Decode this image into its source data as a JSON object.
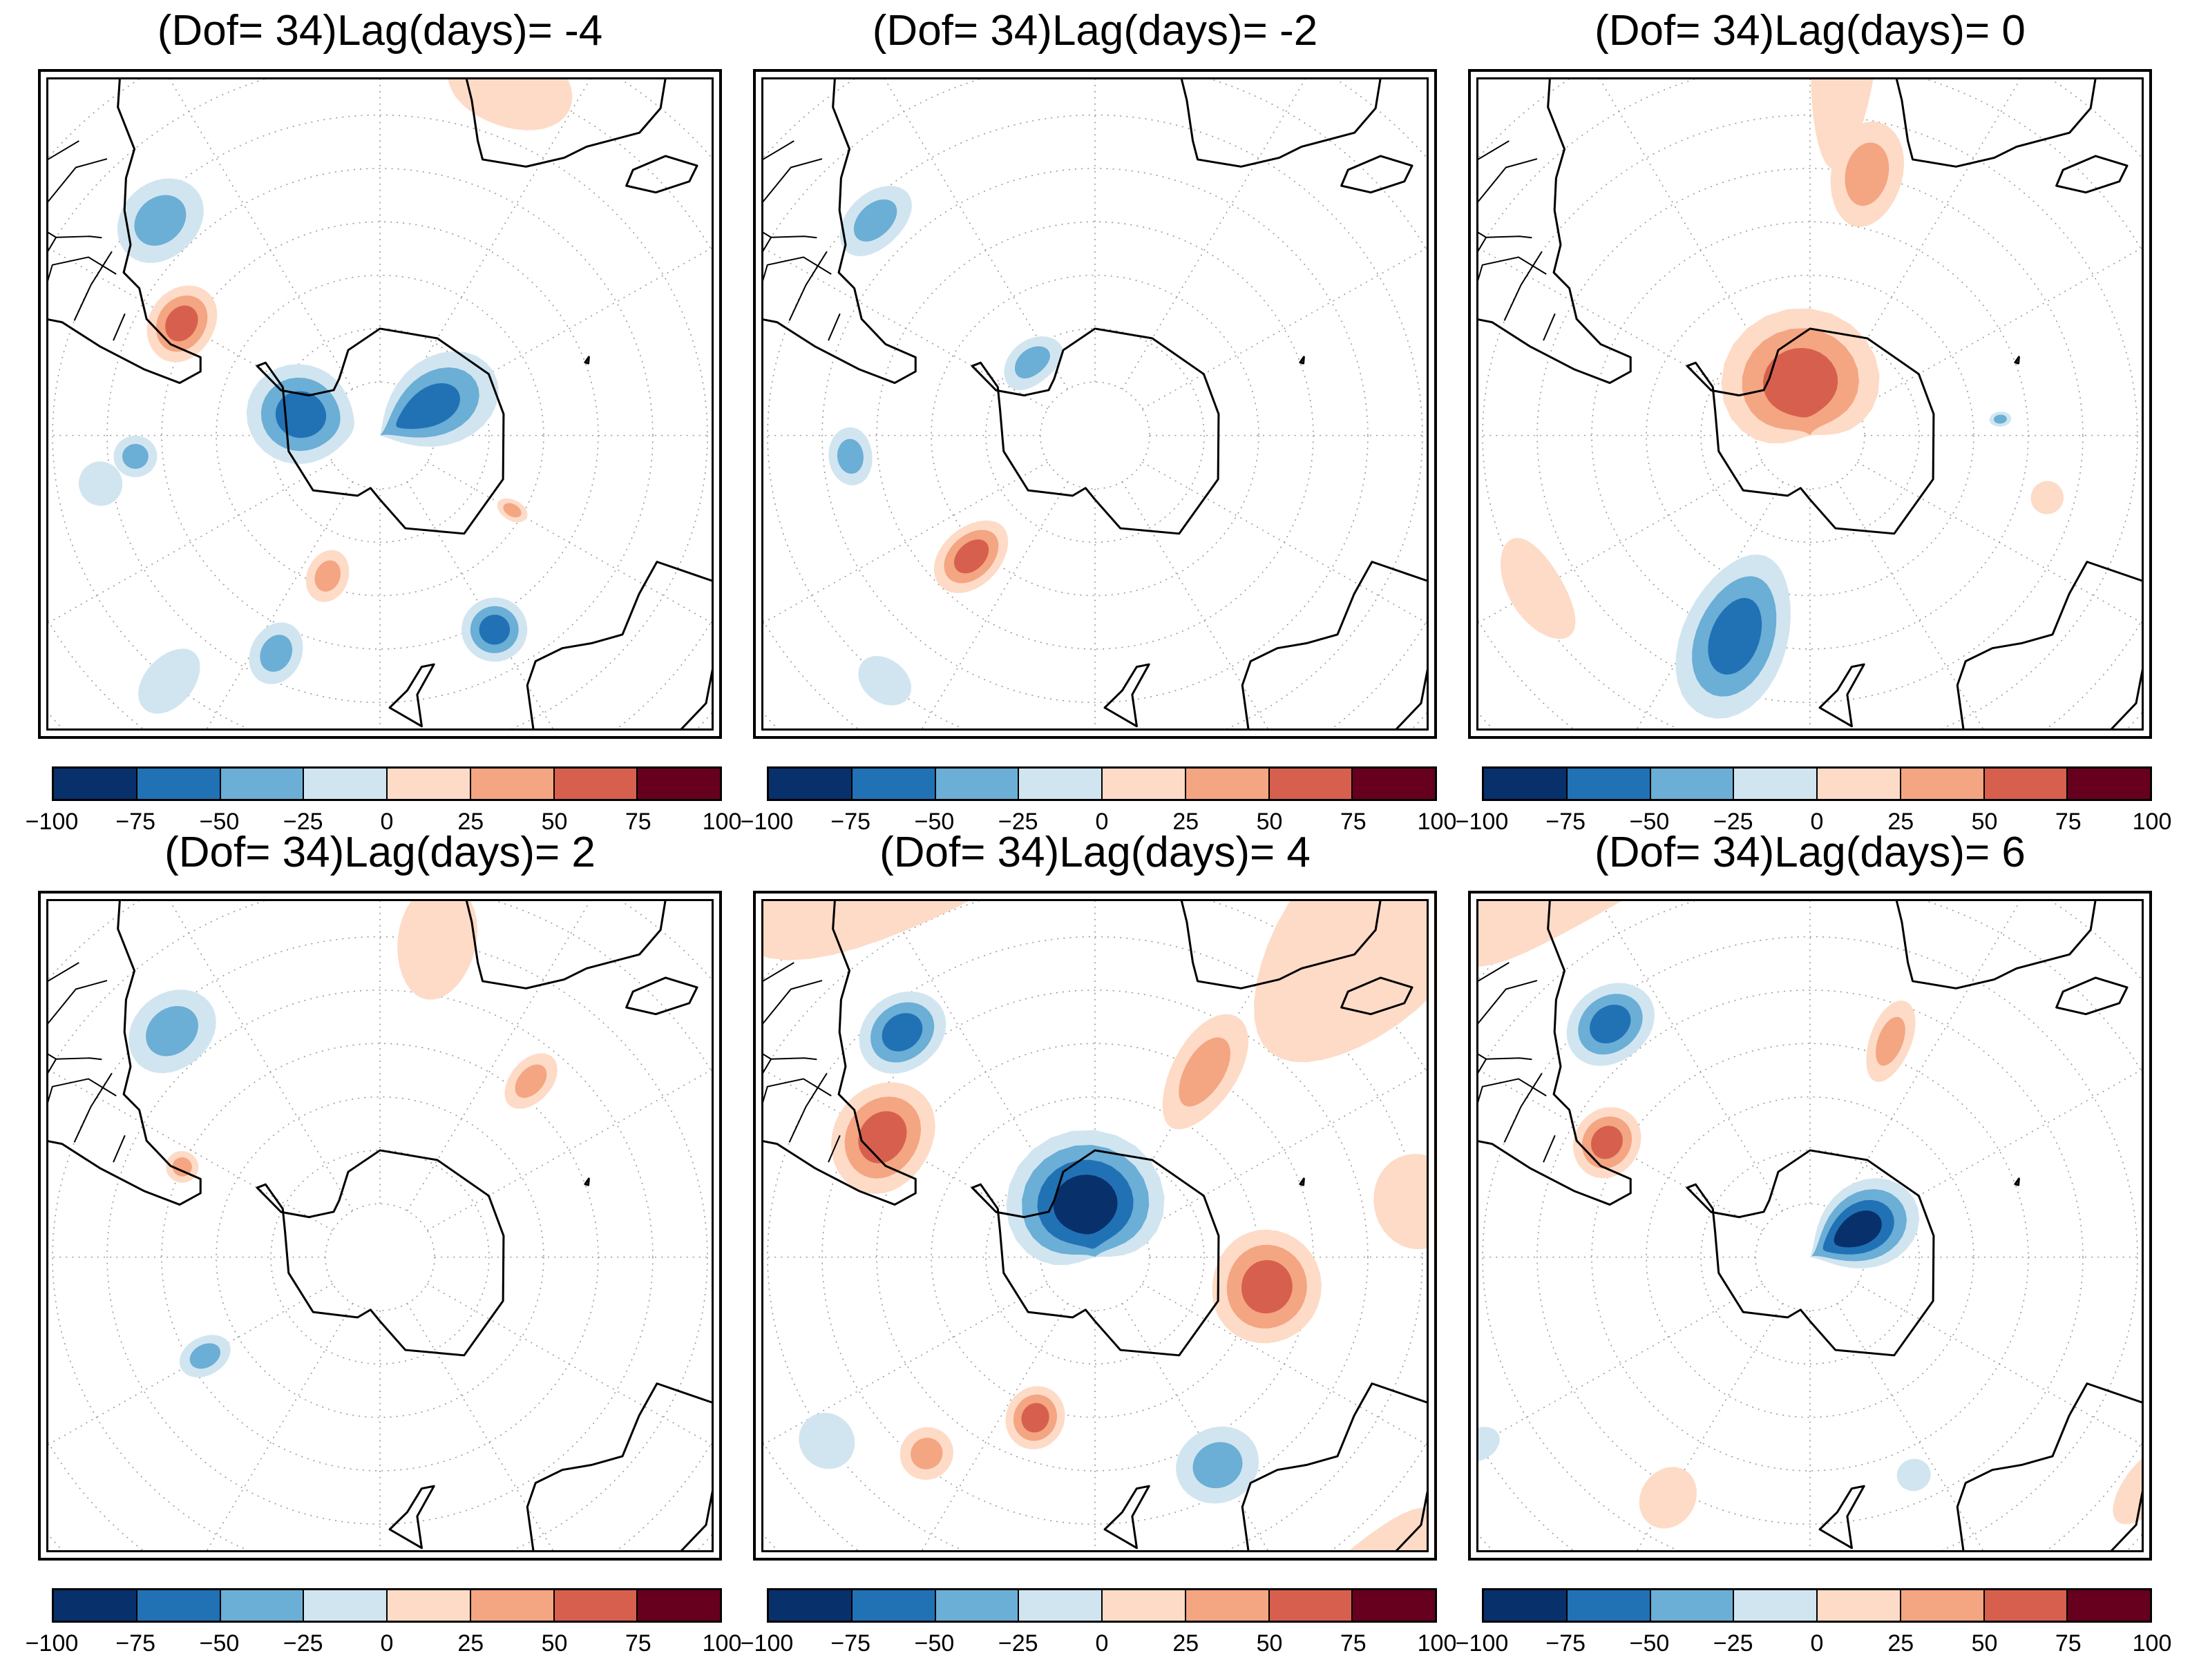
{
  "panels": [
    {
      "title": "(Dof= 34)Lag(days)= -4",
      "anomalies": [
        {
          "value": 25,
          "lon": 20,
          "lat": -20,
          "rx": 12,
          "ry": 8
        },
        {
          "value": -50,
          "lon": -45,
          "lat": -33,
          "rx": 10,
          "ry": 7
        },
        {
          "value": 75,
          "lon": -60,
          "lat": -48,
          "rx": 10,
          "ry": 6
        },
        {
          "value": -25,
          "lon": -100,
          "lat": -38,
          "rx": 5,
          "ry": 4
        },
        {
          "value": -50,
          "lon": -95,
          "lat": -45,
          "rx": 5,
          "ry": 4
        },
        {
          "value": -25,
          "lon": -140,
          "lat": -30,
          "rx": 5,
          "ry": 7
        },
        {
          "value": -75,
          "lon": -75,
          "lat": -75,
          "rx": 20,
          "ry": 10
        },
        {
          "value": -75,
          "lon": 60,
          "lat": -80,
          "rx": 20,
          "ry": 14
        },
        {
          "value": 50,
          "lon": -160,
          "lat": -62,
          "rx": 6,
          "ry": 5
        },
        {
          "value": -50,
          "lon": -155,
          "lat": -45,
          "rx": 6,
          "ry": 6
        },
        {
          "value": -75,
          "lon": 150,
          "lat": -48,
          "rx": 8,
          "ry": 6
        },
        {
          "value": 50,
          "lon": 120,
          "lat": -62,
          "rx": 3,
          "ry": 3
        }
      ]
    },
    {
      "title": "(Dof= 34)Lag(days)= -2",
      "anomalies": [
        {
          "value": -50,
          "lon": -45,
          "lat": -33,
          "rx": 9,
          "ry": 5
        },
        {
          "value": -50,
          "lon": -95,
          "lat": -45,
          "rx": 7,
          "ry": 4
        },
        {
          "value": -25,
          "lon": -140,
          "lat": -30,
          "rx": 6,
          "ry": 4
        },
        {
          "value": 75,
          "lon": -135,
          "lat": -58,
          "rx": 8,
          "ry": 8
        },
        {
          "value": -50,
          "lon": -40,
          "lat": -72,
          "rx": 12,
          "ry": 4
        }
      ]
    },
    {
      "title": "(Dof= 34)Lag(days)= 0",
      "anomalies": [
        {
          "value": 25,
          "lon": 5,
          "lat": -20,
          "rx": 6,
          "ry": 20
        },
        {
          "value": 50,
          "lon": 12,
          "lat": -40,
          "rx": 8,
          "ry": 10
        },
        {
          "value": 75,
          "lon": -10,
          "lat": -80,
          "rx": 40,
          "ry": 14
        },
        {
          "value": -75,
          "lon": -160,
          "lat": -50,
          "rx": 13,
          "ry": 16
        },
        {
          "value": 25,
          "lon": -120,
          "lat": -32,
          "rx": 12,
          "ry": 5
        },
        {
          "value": -50,
          "lon": 85,
          "lat": -55,
          "rx": 2,
          "ry": 2
        },
        {
          "value": 25,
          "lon": 105,
          "lat": -45,
          "rx": 4,
          "ry": 3
        }
      ]
    },
    {
      "title": "(Dof= 34)Lag(days)= 2",
      "anomalies": [
        {
          "value": -50,
          "lon": -42,
          "lat": -33,
          "rx": 10,
          "ry": 7
        },
        {
          "value": 25,
          "lon": 10,
          "lat": -30,
          "rx": 8,
          "ry": 11
        },
        {
          "value": 50,
          "lon": -65,
          "lat": -50,
          "rx": 4,
          "ry": 3
        },
        {
          "value": -50,
          "lon": -120,
          "lat": -53,
          "rx": 5,
          "ry": 5
        },
        {
          "value": 50,
          "lon": 40,
          "lat": -47,
          "rx": 5,
          "ry": 6
        }
      ]
    },
    {
      "title": "(Dof= 34)Lag(days)= 4",
      "anomalies": [
        {
          "value": 25,
          "lon": -25,
          "lat": -2,
          "rx": 30,
          "ry": 18
        },
        {
          "value": 25,
          "lon": 40,
          "lat": -15,
          "rx": 15,
          "ry": 25
        },
        {
          "value": -75,
          "lon": -40,
          "lat": -35,
          "rx": 10,
          "ry": 7
        },
        {
          "value": 75,
          "lon": -60,
          "lat": -45,
          "rx": 14,
          "ry": 9
        },
        {
          "value": 50,
          "lon": 30,
          "lat": -50,
          "rx": 8,
          "ry": 12
        },
        {
          "value": -100,
          "lon": -10,
          "lat": -80,
          "rx": 40,
          "ry": 14
        },
        {
          "value": 75,
          "lon": 100,
          "lat": -58,
          "rx": 16,
          "ry": 10
        },
        {
          "value": 75,
          "lon": -160,
          "lat": -58,
          "rx": 8,
          "ry": 6
        },
        {
          "value": 50,
          "lon": -140,
          "lat": -42,
          "rx": 6,
          "ry": 5
        },
        {
          "value": -50,
          "lon": 150,
          "lat": -45,
          "rx": 10,
          "ry": 7
        },
        {
          "value": 25,
          "lon": 140,
          "lat": -12,
          "rx": 16,
          "ry": 6
        },
        {
          "value": 25,
          "lon": 80,
          "lat": -30,
          "rx": 10,
          "ry": 8
        },
        {
          "value": -25,
          "lon": -125,
          "lat": -30,
          "rx": 6,
          "ry": 5
        }
      ]
    },
    {
      "title": "(Dof= 34)Lag(days)= 6",
      "anomalies": [
        {
          "value": 25,
          "lon": -30,
          "lat": -5,
          "rx": 25,
          "ry": 10
        },
        {
          "value": -75,
          "lon": -40,
          "lat": -33,
          "rx": 10,
          "ry": 7
        },
        {
          "value": 75,
          "lon": -60,
          "lat": -47,
          "rx": 9,
          "ry": 6
        },
        {
          "value": 50,
          "lon": 20,
          "lat": -47,
          "rx": 5,
          "ry": 8
        },
        {
          "value": -100,
          "lon": 60,
          "lat": -80,
          "rx": 20,
          "ry": 12
        },
        {
          "value": 25,
          "lon": -150,
          "lat": -38,
          "rx": 6,
          "ry": 6
        },
        {
          "value": -25,
          "lon": 155,
          "lat": -45,
          "rx": 4,
          "ry": 3
        },
        {
          "value": 25,
          "lon": 125,
          "lat": -15,
          "rx": 8,
          "ry": 4
        },
        {
          "value": -25,
          "lon": -120,
          "lat": -20,
          "rx": 3,
          "ry": 4
        }
      ]
    }
  ],
  "colorbar": {
    "ticks": [
      "−100",
      "−75",
      "−50",
      "−25",
      "0",
      "25",
      "50",
      "75",
      "100"
    ],
    "colors": [
      "#08306b",
      "#2171b5",
      "#6baed6",
      "#d1e5f0",
      "#fddbc7",
      "#f4a582",
      "#d6604d",
      "#67001f"
    ]
  },
  "map_colors": {
    "coast": "#000000",
    "grid": "#9a9a9a",
    "levels": [
      {
        "value": -100,
        "color": "#08306b"
      },
      {
        "value": -75,
        "color": "#2171b5"
      },
      {
        "value": -50,
        "color": "#6baed6"
      },
      {
        "value": -25,
        "color": "#d1e5f0"
      },
      {
        "value": 25,
        "color": "#fddbc7"
      },
      {
        "value": 50,
        "color": "#f4a582"
      },
      {
        "value": 75,
        "color": "#d6604d"
      },
      {
        "value": 100,
        "color": "#67001f"
      }
    ]
  }
}
